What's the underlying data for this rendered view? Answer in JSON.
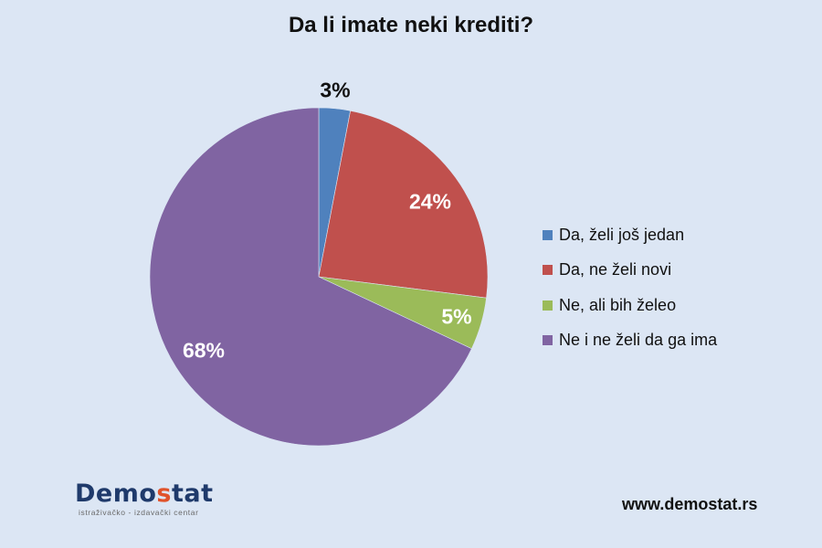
{
  "header": {
    "title": "Da li imate neki krediti?"
  },
  "chart_data": {
    "type": "pie",
    "title": "Da li imate neki krediti?",
    "categories": [
      "Da, želi još jedan",
      "Da, ne želi novi",
      "Ne, ali bih želeo",
      "Ne i ne želi da ga ima"
    ],
    "values": [
      3,
      24,
      5,
      68
    ],
    "labels": [
      "3%",
      "24%",
      "5%",
      "68%"
    ],
    "colors": [
      "#4f81bd",
      "#c0504d",
      "#9bbb59",
      "#8064a2"
    ],
    "start_angle_deg": 0,
    "direction": "clockwise",
    "legend_position": "right",
    "xlabel": "",
    "ylabel": ""
  },
  "legend": {
    "items": [
      {
        "label": "Da, želi još jedan",
        "color": "#4f81bd"
      },
      {
        "label": "Da, ne želi novi",
        "color": "#c0504d"
      },
      {
        "label": "Ne, ali bih želeo",
        "color": "#9bbb59"
      },
      {
        "label": "Ne i ne želi da ga ima",
        "color": "#8064a2"
      }
    ]
  },
  "footer": {
    "logo_prefix": "Demo",
    "logo_accent": "s",
    "logo_suffix": "tat",
    "logo_tagline": "istraživačko - izdavački  centar",
    "website": "www.demostat.rs"
  },
  "colors": {
    "background": "#dce6f4",
    "logo_blue": "#1f3a6b",
    "logo_orange": "#e0532b"
  }
}
